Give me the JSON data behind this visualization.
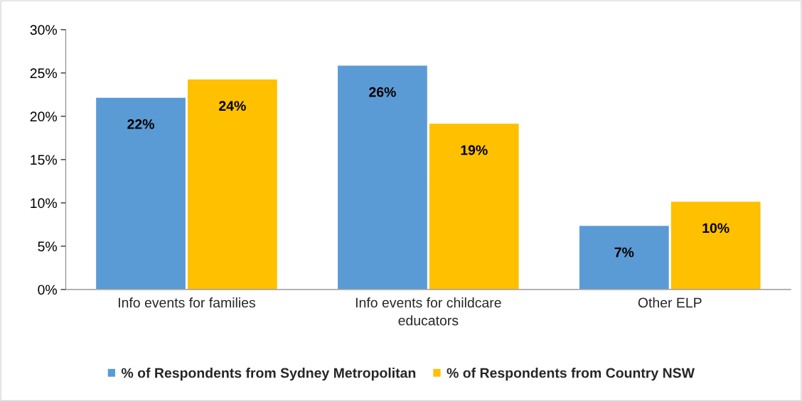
{
  "chart_data": {
    "type": "bar",
    "categories": [
      "Info events for families",
      "Info events for childcare educators",
      "Other ELP"
    ],
    "series": [
      {
        "name": "% of Respondents from Sydney Metropolitan",
        "color": "#5b9bd5",
        "values": [
          22.2,
          25.9,
          7.4
        ],
        "value_labels": [
          "22%",
          "26%",
          "7%"
        ]
      },
      {
        "name": "% of Respondents from Country NSW",
        "color": "#ffc000",
        "values": [
          24.3,
          19.2,
          10.2
        ],
        "value_labels": [
          "24%",
          "19%",
          "10%"
        ]
      }
    ],
    "ylim": [
      0,
      30
    ],
    "yticks": [
      {
        "value": 0,
        "label": "0%"
      },
      {
        "value": 5,
        "label": "5%"
      },
      {
        "value": 10,
        "label": "10%"
      },
      {
        "value": 15,
        "label": "15%"
      },
      {
        "value": 20,
        "label": "20%"
      },
      {
        "value": 25,
        "label": "25%"
      },
      {
        "value": 30,
        "label": "30%"
      }
    ],
    "grid": false,
    "legend": "bottom"
  }
}
